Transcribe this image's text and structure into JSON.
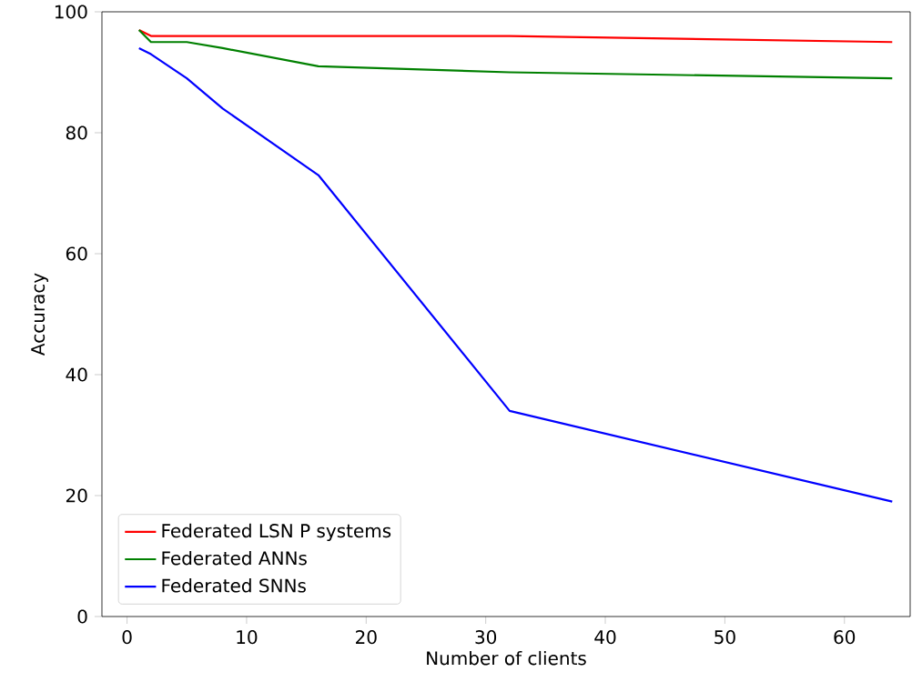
{
  "chart_data": {
    "type": "line",
    "xlabel": "Number of clients",
    "ylabel": "Accuracy",
    "x": [
      1,
      2,
      5,
      8,
      16,
      32,
      64
    ],
    "series": [
      {
        "name": "Federated LSN P systems",
        "color": "#ff0000",
        "values": [
          97,
          96,
          96,
          96,
          96,
          96,
          95
        ]
      },
      {
        "name": "Federated ANNs",
        "color": "#008000",
        "values": [
          97,
          95,
          95,
          94,
          91,
          90,
          89
        ]
      },
      {
        "name": "Federated SNNs",
        "color": "#0000ff",
        "values": [
          94,
          93,
          89,
          84,
          73,
          34,
          19
        ]
      }
    ],
    "xlim": [
      -2.1,
      65.5
    ],
    "ylim": [
      0,
      100
    ],
    "xticks": [
      0,
      10,
      20,
      30,
      40,
      50,
      60
    ],
    "yticks": [
      0,
      20,
      40,
      60,
      80,
      100
    ],
    "legend": "bottom left",
    "grid": false,
    "marker": "none",
    "line_style": "solid"
  }
}
